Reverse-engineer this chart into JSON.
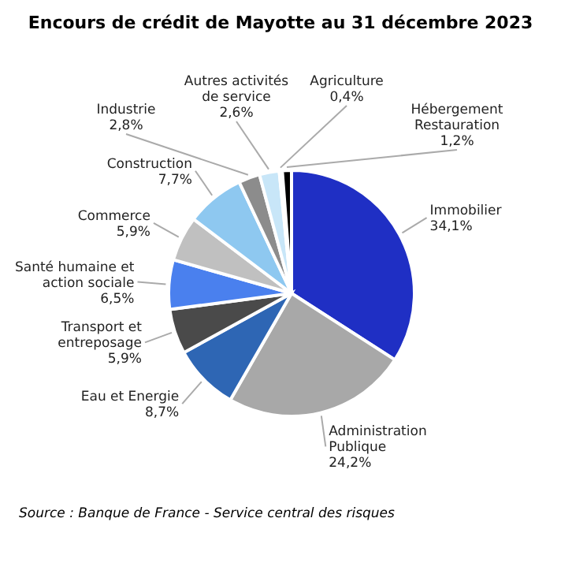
{
  "chart_data": {
    "type": "pie",
    "title": "Encours de crédit de Mayotte au 31 décembre 2023",
    "categories": [
      "Immobilier",
      "Administration Publique",
      "Eau et Energie",
      "Transport et entreposage",
      "Santé humaine et action sociale",
      "Commerce",
      "Construction",
      "Industrie",
      "Autres activités de service",
      "Agriculture",
      "Hébergement Restauration"
    ],
    "values": [
      34.1,
      24.2,
      8.7,
      5.9,
      6.5,
      5.9,
      7.7,
      2.8,
      2.6,
      0.4,
      1.2
    ],
    "value_labels": [
      "34,1%",
      "24,2%",
      "8,7%",
      "5,9%",
      "6,5%",
      "5,9%",
      "7,7%",
      "2,8%",
      "2,6%",
      "0,4%",
      "1,2%"
    ],
    "colors": [
      "#1f2fc4",
      "#a8a8a8",
      "#2e66b4",
      "#4a4a4a",
      "#4a80ee",
      "#c0c0c0",
      "#8ec8f0",
      "#8c8c8c",
      "#c8e6f8",
      "#e0e0e0",
      "#000000"
    ],
    "annotations": [
      "Source : Banque de France - Service central des risques"
    ]
  }
}
